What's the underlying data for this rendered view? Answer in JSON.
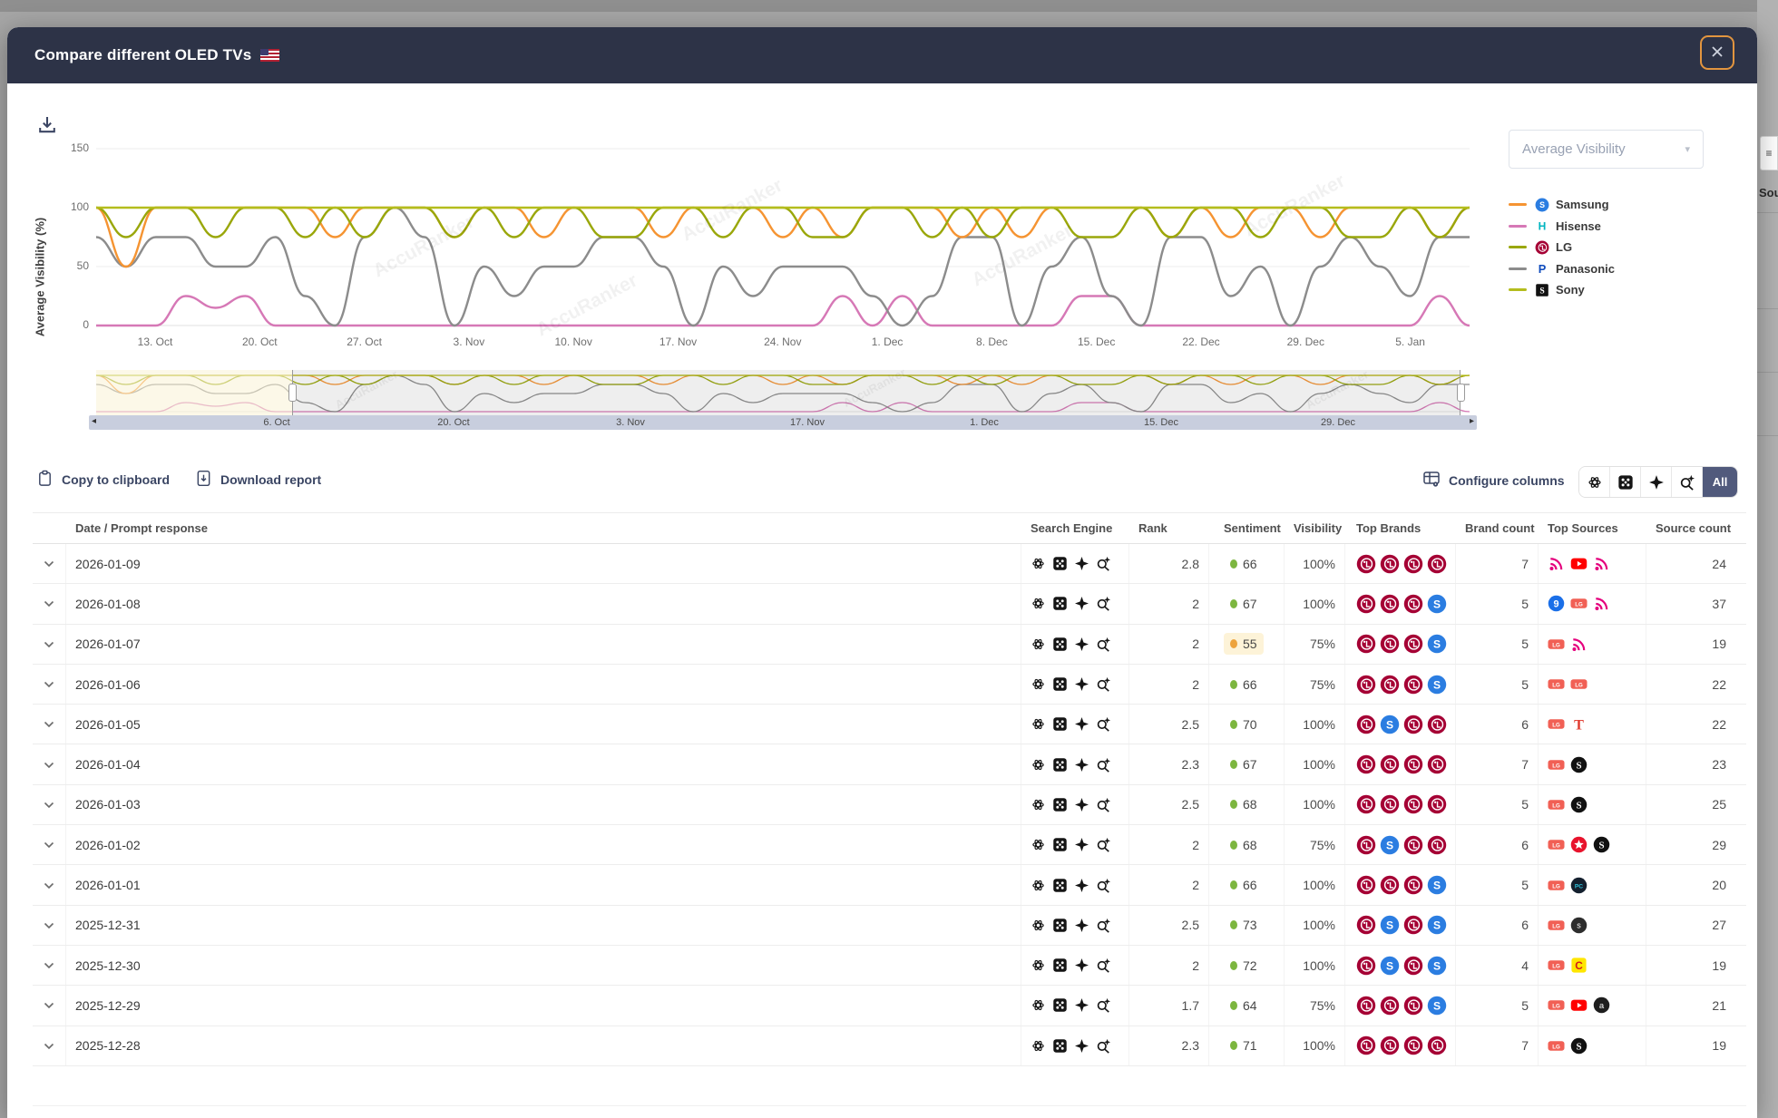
{
  "modal": {
    "title": "Compare different OLED TVs",
    "flag": "us-flag"
  },
  "watermark": "AccuRanker",
  "chart_controls": {
    "metric_select": {
      "value": "Average Visibility"
    }
  },
  "chart_data": {
    "type": "line",
    "title": "",
    "xlabel": "",
    "ylabel": "Average Visibility (%)",
    "ylim": [
      0,
      150
    ],
    "yticks": [
      150,
      100,
      50,
      0
    ],
    "grid": true,
    "legend_position": "right",
    "x_tick_labels": [
      "13. Oct",
      "20. Oct",
      "27. Oct",
      "3. Nov",
      "10. Nov",
      "17. Nov",
      "24. Nov",
      "1. Dec",
      "8. Dec",
      "15. Dec",
      "22. Dec",
      "29. Dec",
      "5. Jan"
    ],
    "navigator_tick_labels": [
      "6. Oct",
      "20. Oct",
      "3. Nov",
      "17. Nov",
      "1. Dec",
      "15. Dec",
      "29. Dec"
    ],
    "series": [
      {
        "name": "Samsung",
        "color": "#f59432",
        "icon": "samsung",
        "values": [
          100,
          50,
          100,
          100,
          100,
          100,
          100,
          100,
          75,
          100,
          100,
          100,
          75,
          100,
          100,
          75,
          100,
          100,
          100,
          75,
          100,
          100,
          100,
          75,
          100,
          75,
          100,
          100,
          100,
          75,
          100,
          75,
          100,
          100,
          100,
          100,
          75,
          100,
          75,
          100,
          100,
          75,
          100,
          100,
          100,
          75,
          100
        ]
      },
      {
        "name": "Hisense",
        "color": "#d678b6",
        "icon": "hisense",
        "values": [
          0,
          0,
          0,
          25,
          15,
          25,
          0,
          0,
          0,
          0,
          0,
          0,
          0,
          0,
          0,
          0,
          0,
          0,
          0,
          0,
          0,
          0,
          0,
          0,
          0,
          25,
          0,
          25,
          0,
          0,
          0,
          0,
          0,
          25,
          25,
          0,
          0,
          0,
          0,
          0,
          0,
          0,
          0,
          0,
          0,
          25,
          0
        ]
      },
      {
        "name": "LG",
        "color": "#9aa70b",
        "icon": "lg",
        "values": [
          100,
          75,
          100,
          100,
          75,
          100,
          100,
          75,
          100,
          75,
          100,
          100,
          75,
          100,
          75,
          100,
          100,
          75,
          75,
          100,
          100,
          75,
          100,
          100,
          75,
          75,
          100,
          100,
          75,
          100,
          75,
          100,
          100,
          75,
          75,
          100,
          75,
          100,
          100,
          75,
          100,
          100,
          75,
          75,
          100,
          75,
          100
        ]
      },
      {
        "name": "Panasonic",
        "color": "#8c8c8c",
        "icon": "panasonic",
        "values": [
          75,
          50,
          75,
          75,
          50,
          50,
          75,
          25,
          0,
          75,
          100,
          75,
          0,
          50,
          25,
          50,
          50,
          75,
          75,
          50,
          0,
          50,
          25,
          50,
          50,
          50,
          25,
          0,
          25,
          75,
          75,
          0,
          50,
          75,
          25,
          0,
          75,
          75,
          25,
          50,
          0,
          50,
          75,
          50,
          25,
          75,
          75
        ]
      },
      {
        "name": "Sony",
        "color": "#b4bd1d",
        "icon": "sony",
        "values": [
          100,
          100,
          100,
          100,
          100,
          100,
          100,
          100,
          100,
          100,
          100,
          100,
          100,
          100,
          100,
          100,
          100,
          100,
          100,
          100,
          100,
          100,
          100,
          100,
          100,
          100,
          100,
          100,
          100,
          100,
          100,
          100,
          100,
          100,
          100,
          100,
          100,
          100,
          100,
          100,
          100,
          100,
          100,
          100,
          100,
          100,
          100
        ]
      }
    ]
  },
  "toolbar": {
    "copy_label": "Copy to clipboard",
    "download_label": "Download report",
    "configure_label": "Configure columns",
    "engine_filters": [
      "openai",
      "ai-overview",
      "gemini-star",
      "ai-mode"
    ],
    "all_label": "All"
  },
  "table": {
    "headers": [
      "",
      "Date / Prompt response",
      "Search Engine",
      "Rank",
      "Sentiment",
      "Visibility",
      "Top Brands",
      "Brand count",
      "Top Sources",
      "Source count"
    ],
    "rows": [
      {
        "date": "2026-01-09",
        "engines": [
          "openai",
          "ai-overview",
          "gemini-star",
          "ai-mode"
        ],
        "rank": "2.8",
        "sentiment": {
          "value": 66,
          "tone": "ok"
        },
        "visibility": "100%",
        "brands": [
          "lg",
          "lg",
          "lg",
          "lg"
        ],
        "brand_count": 7,
        "sources": [
          "rss",
          "youtube",
          "rss"
        ],
        "source_count": 24
      },
      {
        "date": "2026-01-08",
        "engines": [
          "openai",
          "ai-overview",
          "gemini-star",
          "ai-mode"
        ],
        "rank": "2",
        "sentiment": {
          "value": 67,
          "tone": "ok"
        },
        "visibility": "100%",
        "brands": [
          "lg",
          "lg",
          "lg",
          "samsung"
        ],
        "brand_count": 5,
        "sources": [
          "nine",
          "lg-badge",
          "rss"
        ],
        "source_count": 37
      },
      {
        "date": "2026-01-07",
        "engines": [
          "openai",
          "ai-overview",
          "gemini-star",
          "ai-mode"
        ],
        "rank": "2",
        "sentiment": {
          "value": 55,
          "tone": "warn"
        },
        "visibility": "75%",
        "brands": [
          "lg",
          "lg",
          "lg",
          "samsung"
        ],
        "brand_count": 5,
        "sources": [
          "lg-badge",
          "rss"
        ],
        "source_count": 19
      },
      {
        "date": "2026-01-06",
        "engines": [
          "openai",
          "ai-overview",
          "gemini-star",
          "ai-mode"
        ],
        "rank": "2",
        "sentiment": {
          "value": 66,
          "tone": "ok"
        },
        "visibility": "75%",
        "brands": [
          "lg",
          "lg",
          "lg",
          "samsung"
        ],
        "brand_count": 5,
        "sources": [
          "lg-badge",
          "lg-badge"
        ],
        "source_count": 22
      },
      {
        "date": "2026-01-05",
        "engines": [
          "openai",
          "ai-overview",
          "gemini-star",
          "ai-mode"
        ],
        "rank": "2.5",
        "sentiment": {
          "value": 70,
          "tone": "ok"
        },
        "visibility": "100%",
        "brands": [
          "lg",
          "samsung",
          "lg",
          "lg"
        ],
        "brand_count": 6,
        "sources": [
          "lg-badge",
          "t-red"
        ],
        "source_count": 22
      },
      {
        "date": "2026-01-04",
        "engines": [
          "openai",
          "ai-overview",
          "gemini-star",
          "ai-mode"
        ],
        "rank": "2.3",
        "sentiment": {
          "value": 67,
          "tone": "ok"
        },
        "visibility": "100%",
        "brands": [
          "lg",
          "lg",
          "lg",
          "lg"
        ],
        "brand_count": 7,
        "sources": [
          "lg-badge",
          "s-black"
        ],
        "source_count": 23
      },
      {
        "date": "2026-01-03",
        "engines": [
          "openai",
          "ai-overview",
          "gemini-star",
          "ai-mode"
        ],
        "rank": "2.5",
        "sentiment": {
          "value": 68,
          "tone": "ok"
        },
        "visibility": "100%",
        "brands": [
          "lg",
          "lg",
          "lg",
          "lg"
        ],
        "brand_count": 5,
        "sources": [
          "lg-badge",
          "s-black"
        ],
        "source_count": 25
      },
      {
        "date": "2026-01-02",
        "engines": [
          "openai",
          "ai-overview",
          "gemini-star",
          "ai-mode"
        ],
        "rank": "2",
        "sentiment": {
          "value": 68,
          "tone": "ok"
        },
        "visibility": "75%",
        "brands": [
          "lg",
          "samsung",
          "lg",
          "lg"
        ],
        "brand_count": 6,
        "sources": [
          "lg-badge",
          "star-red",
          "s-black"
        ],
        "source_count": 29
      },
      {
        "date": "2026-01-01",
        "engines": [
          "openai",
          "ai-overview",
          "gemini-star",
          "ai-mode"
        ],
        "rank": "2",
        "sentiment": {
          "value": 66,
          "tone": "ok"
        },
        "visibility": "100%",
        "brands": [
          "lg",
          "lg",
          "lg",
          "samsung"
        ],
        "brand_count": 5,
        "sources": [
          "lg-badge",
          "pc-dark"
        ],
        "source_count": 20
      },
      {
        "date": "2025-12-31",
        "engines": [
          "openai",
          "ai-overview",
          "gemini-star",
          "ai-mode"
        ],
        "rank": "2.5",
        "sentiment": {
          "value": 73,
          "tone": "ok"
        },
        "visibility": "100%",
        "brands": [
          "lg",
          "samsung",
          "lg",
          "samsung"
        ],
        "brand_count": 6,
        "sources": [
          "lg-badge",
          "s-dot"
        ],
        "source_count": 27
      },
      {
        "date": "2025-12-30",
        "engines": [
          "openai",
          "ai-overview",
          "gemini-star",
          "ai-mode"
        ],
        "rank": "2",
        "sentiment": {
          "value": 72,
          "tone": "ok"
        },
        "visibility": "100%",
        "brands": [
          "lg",
          "samsung",
          "lg",
          "samsung"
        ],
        "brand_count": 4,
        "sources": [
          "lg-badge",
          "c-yellow"
        ],
        "source_count": 19
      },
      {
        "date": "2025-12-29",
        "engines": [
          "openai",
          "ai-overview",
          "gemini-star",
          "ai-mode"
        ],
        "rank": "1.7",
        "sentiment": {
          "value": 64,
          "tone": "ok"
        },
        "visibility": "75%",
        "brands": [
          "lg",
          "lg",
          "lg",
          "samsung"
        ],
        "brand_count": 5,
        "sources": [
          "lg-badge",
          "youtube",
          "a-dark"
        ],
        "source_count": 21
      },
      {
        "date": "2025-12-28",
        "engines": [
          "openai",
          "ai-overview",
          "gemini-star",
          "ai-mode"
        ],
        "rank": "2.3",
        "sentiment": {
          "value": 71,
          "tone": "ok"
        },
        "visibility": "100%",
        "brands": [
          "lg",
          "lg",
          "lg",
          "lg"
        ],
        "brand_count": 7,
        "sources": [
          "lg-badge",
          "s-black"
        ],
        "source_count": 19
      }
    ]
  },
  "background": {
    "truncated_label": "Sou"
  }
}
